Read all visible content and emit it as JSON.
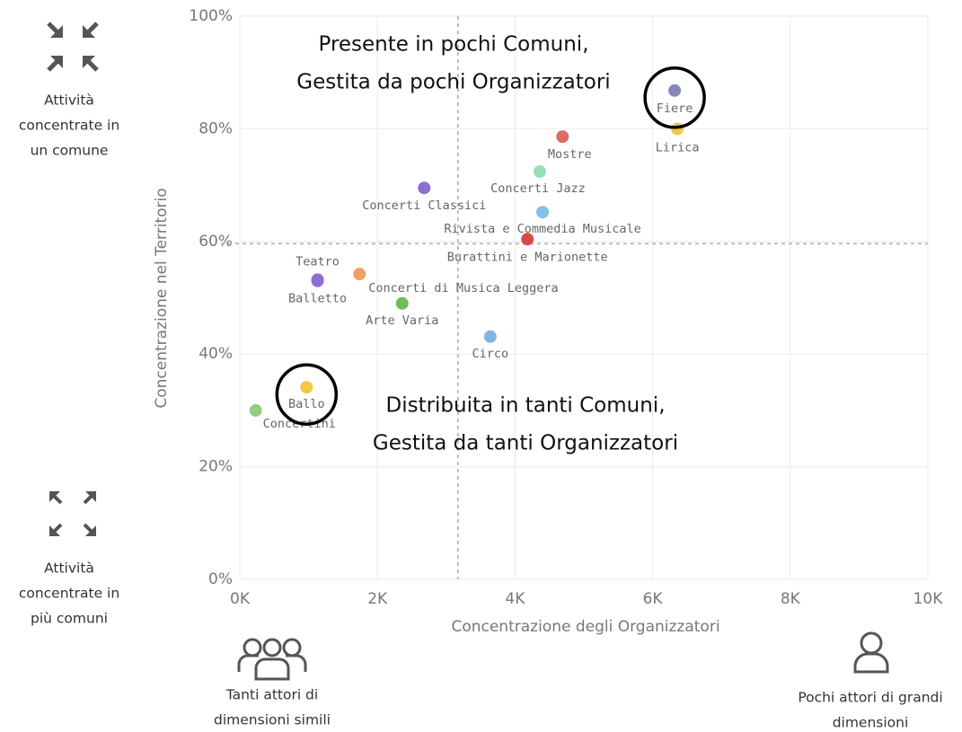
{
  "chart_data": {
    "type": "scatter",
    "x_label": "Concentrazione degli Organizzatori",
    "y_label": "Concentrazione nel Territorio",
    "xlim": [
      0,
      10000
    ],
    "xticks": [
      {
        "value": 0,
        "label": "0K"
      },
      {
        "value": 2000,
        "label": "2K"
      },
      {
        "value": 4000,
        "label": "4K"
      },
      {
        "value": 6000,
        "label": "6K"
      },
      {
        "value": 8000,
        "label": "8K"
      },
      {
        "value": 10000,
        "label": "10K"
      }
    ],
    "ylim": [
      0,
      100
    ],
    "yticks": [
      {
        "value": 0,
        "label": "0%"
      },
      {
        "value": 20,
        "label": "20%"
      },
      {
        "value": 40,
        "label": "40%"
      },
      {
        "value": 60,
        "label": "60%"
      },
      {
        "value": 80,
        "label": "80%"
      },
      {
        "value": 100,
        "label": "100%"
      }
    ],
    "grid": true,
    "reference_lines": {
      "x": 3170,
      "y": 59.6
    },
    "series": [
      {
        "name": "Fiere",
        "color": "#8587b8",
        "x": [
          6320
        ],
        "values": [
          86.8
        ]
      },
      {
        "name": "Lirica",
        "color": "#f2c744",
        "x": [
          6360
        ],
        "values": [
          80
        ]
      },
      {
        "name": "Mostre",
        "color": "#dd6b66",
        "x": [
          4690
        ],
        "values": [
          78.6
        ]
      },
      {
        "name": "Concerti Jazz",
        "color": "#96dfb6",
        "x": [
          4360
        ],
        "values": [
          72.4
        ]
      },
      {
        "name": "Concerti Classici",
        "color": "#8d6fd1",
        "x": [
          2680
        ],
        "values": [
          69.5
        ]
      },
      {
        "name": "Rivista e Commedia Musicale",
        "color": "#87bfe8",
        "x": [
          4400
        ],
        "values": [
          65.2
        ]
      },
      {
        "name": "Burattini e Marionette",
        "color": "#d94a44",
        "x": [
          4180
        ],
        "values": [
          60.4
        ]
      },
      {
        "name": "Teatro",
        "color": "#8d6fd1",
        "x": [
          1130
        ],
        "values": [
          53.2
        ]
      },
      {
        "name": "Balletto",
        "color": "#8d6fd1",
        "x": [
          1130
        ],
        "values": [
          53
        ]
      },
      {
        "name": "Concerti di Musica Leggera",
        "color": "#f0a064",
        "x": [
          1740
        ],
        "values": [
          54.2
        ]
      },
      {
        "name": "Arte Varia",
        "color": "#6dbd5f",
        "x": [
          2360
        ],
        "values": [
          49
        ]
      },
      {
        "name": "Circo",
        "color": "#7fb4e3",
        "x": [
          3640
        ],
        "values": [
          43.1
        ]
      },
      {
        "name": "Ballo",
        "color": "#f2c744",
        "x": [
          970
        ],
        "values": [
          34.1
        ]
      },
      {
        "name": "Concertini",
        "color": "#8fcf7f",
        "x": [
          230
        ],
        "values": [
          30
        ]
      }
    ],
    "annotations": [
      [
        "Presente in pochi Comuni,",
        "Gestita da pochi Organizzatori"
      ],
      [
        "Distribuita in tanti Comuni,",
        "Gestita da tanti Organizzatori"
      ]
    ]
  },
  "side_labels": {
    "top_left": [
      "Attività",
      "concentrate in",
      "un comune"
    ],
    "bottom_left": [
      "Attività",
      "concentrate in",
      "più comuni"
    ],
    "bottom_x_left": [
      "Tanti attori di",
      "dimensioni simili"
    ],
    "bottom_x_right": [
      "Pochi attori di grandi",
      "dimensioni"
    ]
  }
}
